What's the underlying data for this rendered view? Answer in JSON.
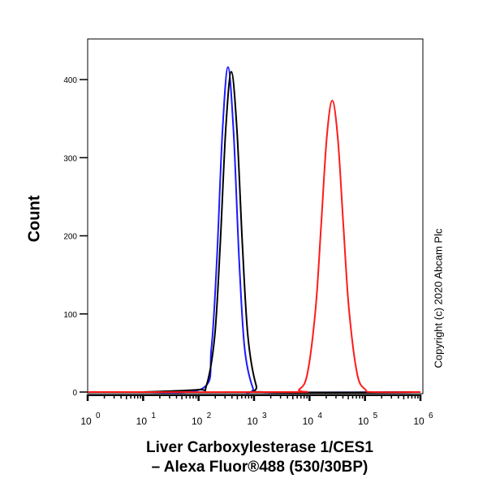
{
  "chart_data": {
    "type": "line",
    "title": "",
    "xlabel_line1": "Liver Carboxylesterase 1/CES1",
    "xlabel_line2": "– Alexa Fluor®488 (530/30BP)",
    "ylabel": "Count",
    "x_scale": "log",
    "xlim": [
      1,
      1000000
    ],
    "ylim": [
      0,
      452
    ],
    "x_ticks": [
      {
        "value": 1,
        "base": "10",
        "exp": "0"
      },
      {
        "value": 10,
        "base": "10",
        "exp": "1"
      },
      {
        "value": 100,
        "base": "10",
        "exp": "2"
      },
      {
        "value": 1000,
        "base": "10",
        "exp": "3"
      },
      {
        "value": 10000,
        "base": "10",
        "exp": "4"
      },
      {
        "value": 100000,
        "base": "10",
        "exp": "5"
      },
      {
        "value": 1000000,
        "base": "10",
        "exp": "6"
      }
    ],
    "y_ticks": [
      0,
      100,
      200,
      300,
      400
    ],
    "grid": false,
    "legend": "none",
    "series": [
      {
        "color": "#1a1aff",
        "points": [
          [
            10,
            0
          ],
          [
            120,
            5
          ],
          [
            170,
            56
          ],
          [
            214,
            171
          ],
          [
            269,
            333
          ],
          [
            339,
            416
          ],
          [
            427,
            333
          ],
          [
            537,
            171
          ],
          [
            676,
            56
          ],
          [
            955,
            5
          ],
          [
            1300,
            0
          ],
          [
            1000000,
            0
          ]
        ]
      },
      {
        "color": "#000000",
        "points": [
          [
            10,
            0
          ],
          [
            98,
            3
          ],
          [
            138,
            8
          ],
          [
            195,
            71
          ],
          [
            245,
            188
          ],
          [
            309,
            337
          ],
          [
            389,
            410
          ],
          [
            490,
            337
          ],
          [
            617,
            188
          ],
          [
            776,
            71
          ],
          [
            1096,
            8
          ],
          [
            1500,
            0
          ],
          [
            1000000,
            0
          ]
        ]
      },
      {
        "color": "#ff1a1a",
        "points": [
          [
            1,
            0
          ],
          [
            4500,
            0
          ],
          [
            6457,
            3
          ],
          [
            9120,
            23
          ],
          [
            12880,
            107
          ],
          [
            16220,
            214
          ],
          [
            20420,
            325
          ],
          [
            25700,
            373
          ],
          [
            32360,
            325
          ],
          [
            40740,
            214
          ],
          [
            51290,
            107
          ],
          [
            72440,
            23
          ],
          [
            102300,
            3
          ],
          [
            140000,
            0
          ],
          [
            1000000,
            0
          ]
        ]
      }
    ]
  },
  "copyright": "Copyright (c) 2020 Abcam Plc"
}
